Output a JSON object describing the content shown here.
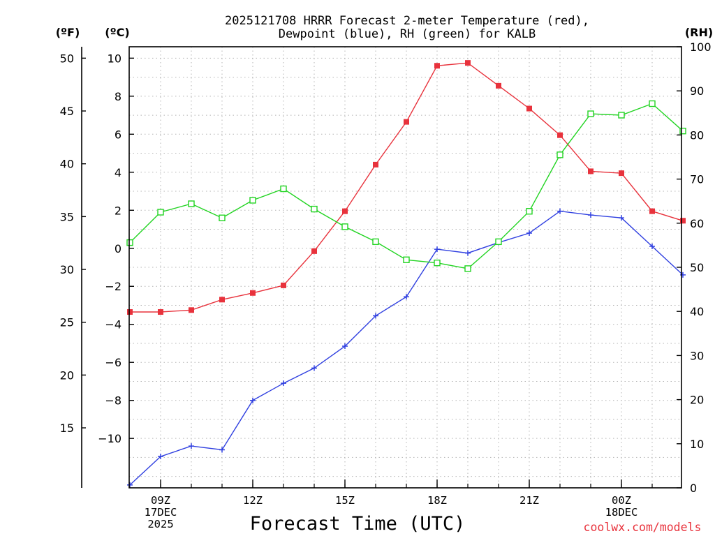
{
  "chart_data": {
    "type": "line",
    "title_line1": "2025121708 HRRR Forecast 2-meter Temperature (red),",
    "title_line2": "Dewpoint (blue), RH (green) for KALB",
    "xlabel": "Forecast Time (UTC)",
    "credit": "coolwx.com/models",
    "units": {
      "fahrenheit": "(ºF)",
      "celsius": "(ºC)",
      "rh": "(RH)"
    },
    "forecast_hours": [
      8,
      9,
      10,
      11,
      12,
      13,
      14,
      15,
      16,
      17,
      18,
      19,
      20,
      21,
      22,
      23,
      0,
      1,
      2
    ],
    "x_ticks": [
      {
        "hour_index": 1,
        "lines": [
          "09Z",
          "17DEC",
          "2025"
        ]
      },
      {
        "hour_index": 4,
        "lines": [
          "12Z"
        ]
      },
      {
        "hour_index": 7,
        "lines": [
          "15Z"
        ]
      },
      {
        "hour_index": 10,
        "lines": [
          "18Z"
        ]
      },
      {
        "hour_index": 13,
        "lines": [
          "21Z"
        ]
      },
      {
        "hour_index": 16,
        "lines": [
          "00Z",
          "18DEC"
        ]
      }
    ],
    "celsius_axis": {
      "min": -12.6,
      "max": 10.6,
      "ticks": [
        "10",
        "8",
        "6",
        "4",
        "2",
        "0",
        "−2",
        "−4",
        "−6",
        "−8",
        "−10"
      ]
    },
    "fahrenheit_axis": {
      "ticks": [
        "50",
        "45",
        "40",
        "35",
        "30",
        "25",
        "20",
        "15"
      ]
    },
    "rh_axis": {
      "min": 0,
      "max": 100,
      "ticks": [
        "100",
        "90",
        "80",
        "70",
        "60",
        "50",
        "40",
        "30",
        "20",
        "10",
        "0"
      ]
    },
    "series": [
      {
        "name": "Temperature",
        "axis": "celsius",
        "color": "#e8323c",
        "marker": "filled-square",
        "values": [
          -3.35,
          -3.35,
          -3.25,
          -2.7,
          -2.35,
          -1.95,
          -0.15,
          1.95,
          4.4,
          6.65,
          9.6,
          9.75,
          8.55,
          7.35,
          5.95,
          4.05,
          3.95,
          1.95,
          1.45
        ]
      },
      {
        "name": "Dewpoint",
        "axis": "celsius",
        "color": "#3040e0",
        "marker": "plus",
        "values": [
          -12.45,
          -10.95,
          -10.4,
          -10.6,
          -8.0,
          -7.1,
          -6.3,
          -5.15,
          -3.55,
          -2.55,
          -0.05,
          -0.25,
          0.3,
          0.8,
          1.95,
          1.75,
          1.6,
          0.1,
          -1.4
        ]
      },
      {
        "name": "RH",
        "axis": "rh",
        "color": "#22d422",
        "marker": "open-square",
        "values": [
          55.6,
          62.5,
          64.4,
          61.2,
          65.2,
          67.8,
          63.2,
          59.2,
          55.8,
          51.7,
          51.0,
          49.7,
          55.8,
          62.7,
          75.5,
          84.8,
          84.5,
          87.1,
          80.9
        ]
      }
    ]
  }
}
